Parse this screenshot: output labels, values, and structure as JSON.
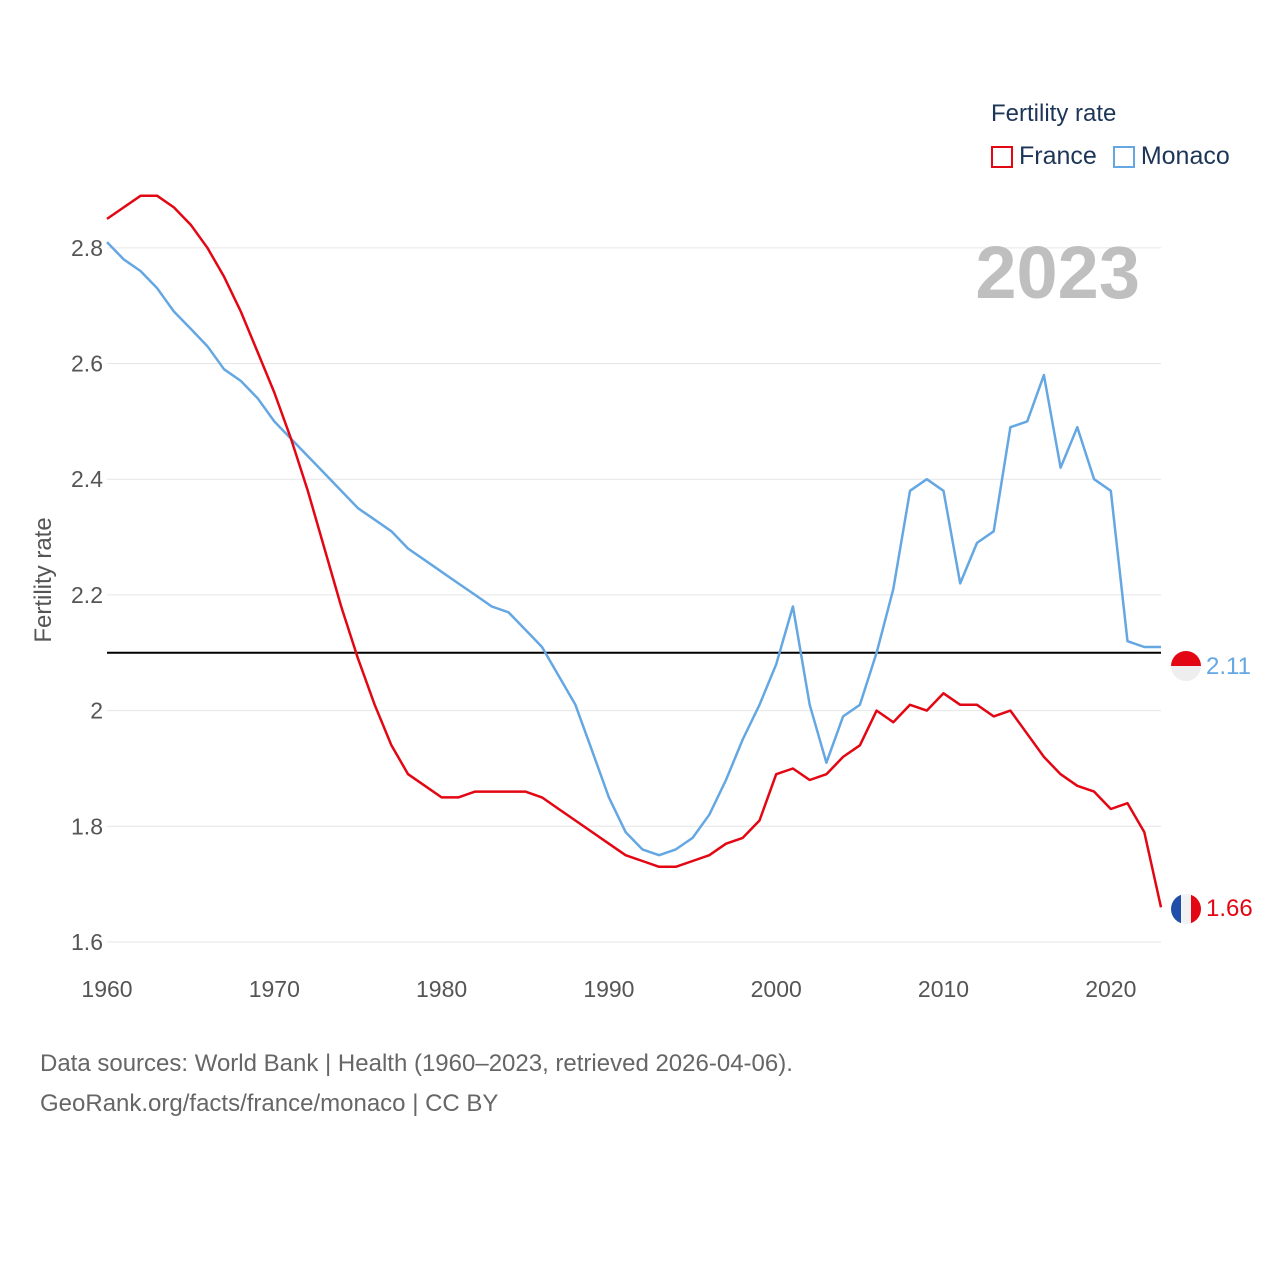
{
  "legend": {
    "title": "Fertility rate",
    "items": [
      {
        "label": "France",
        "color": "#e30613"
      },
      {
        "label": "Monaco",
        "color": "#64a7e2"
      }
    ]
  },
  "year_label": "2023",
  "footer": {
    "line1": "Data sources: World Bank | Health (1960–2023, retrieved 2026-04-06).",
    "line2": "GeoRank.org/facts/france/monaco | CC BY"
  },
  "chart_data": {
    "type": "line",
    "ylabel": "Fertility rate",
    "xlabel": "",
    "xlim": [
      1960,
      2023
    ],
    "ylim": [
      1.6,
      2.9
    ],
    "x_ticks": [
      1960,
      1970,
      1980,
      1990,
      2000,
      2010,
      2020
    ],
    "y_ticks": [
      1.6,
      1.8,
      2.0,
      2.2,
      2.4,
      2.6,
      2.8
    ],
    "y_tick_labels": [
      "1.6",
      "1.8",
      "2",
      "2.2",
      "2.4",
      "2.6",
      "2.8"
    ],
    "reference_line": {
      "y": 2.1,
      "color": "#000000"
    },
    "x": [
      1960,
      1961,
      1962,
      1963,
      1964,
      1965,
      1966,
      1967,
      1968,
      1969,
      1970,
      1971,
      1972,
      1973,
      1974,
      1975,
      1976,
      1977,
      1978,
      1979,
      1980,
      1981,
      1982,
      1983,
      1984,
      1985,
      1986,
      1987,
      1988,
      1989,
      1990,
      1991,
      1992,
      1993,
      1994,
      1995,
      1996,
      1997,
      1998,
      1999,
      2000,
      2001,
      2002,
      2003,
      2004,
      2005,
      2006,
      2007,
      2008,
      2009,
      2010,
      2011,
      2012,
      2013,
      2014,
      2015,
      2016,
      2017,
      2018,
      2019,
      2020,
      2021,
      2022,
      2023
    ],
    "series": [
      {
        "name": "France",
        "color": "#e30613",
        "end_label": "1.66",
        "values": [
          2.85,
          2.87,
          2.89,
          2.89,
          2.87,
          2.84,
          2.8,
          2.75,
          2.69,
          2.62,
          2.55,
          2.47,
          2.38,
          2.28,
          2.18,
          2.09,
          2.01,
          1.94,
          1.89,
          1.87,
          1.85,
          1.85,
          1.86,
          1.86,
          1.86,
          1.86,
          1.85,
          1.83,
          1.81,
          1.79,
          1.77,
          1.75,
          1.74,
          1.73,
          1.73,
          1.74,
          1.75,
          1.77,
          1.78,
          1.81,
          1.89,
          1.9,
          1.88,
          1.89,
          1.92,
          1.94,
          2.0,
          1.98,
          2.01,
          2.0,
          2.03,
          2.01,
          2.01,
          1.99,
          2.0,
          1.96,
          1.92,
          1.89,
          1.87,
          1.86,
          1.83,
          1.84,
          1.79,
          1.66
        ]
      },
      {
        "name": "Monaco",
        "color": "#64a7e2",
        "end_label": "2.11",
        "values": [
          2.81,
          2.78,
          2.76,
          2.73,
          2.69,
          2.66,
          2.63,
          2.59,
          2.57,
          2.54,
          2.5,
          2.47,
          2.44,
          2.41,
          2.38,
          2.35,
          2.33,
          2.31,
          2.28,
          2.26,
          2.24,
          2.22,
          2.2,
          2.18,
          2.17,
          2.14,
          2.11,
          2.06,
          2.01,
          1.93,
          1.85,
          1.79,
          1.76,
          1.75,
          1.76,
          1.78,
          1.82,
          1.88,
          1.95,
          2.01,
          2.08,
          2.18,
          2.01,
          1.91,
          1.99,
          2.01,
          2.1,
          2.21,
          2.38,
          2.4,
          2.38,
          2.22,
          2.29,
          2.31,
          2.49,
          2.5,
          2.58,
          2.42,
          2.49,
          2.4,
          2.38,
          2.12,
          2.11,
          2.11
        ]
      }
    ]
  }
}
